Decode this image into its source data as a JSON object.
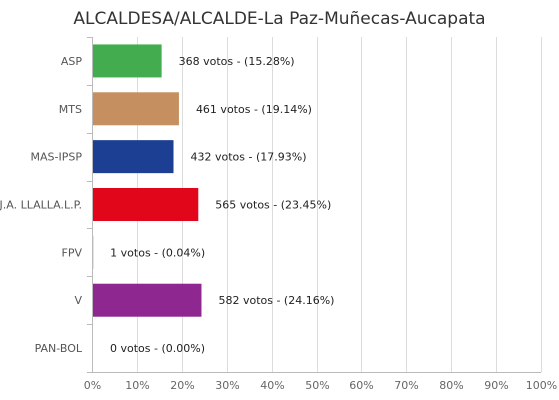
{
  "chart_data": {
    "type": "bar",
    "orientation": "horizontal",
    "title": "ALCALDESA/ALCALDE-La Paz-Muñecas-Aucapata",
    "categories": [
      "ASP",
      "MTS",
      "MAS-IPSP",
      "J.A. LLALLA.L.P.",
      "FPV",
      "V",
      "PAN-BOL"
    ],
    "values": [
      15.28,
      19.14,
      17.93,
      23.45,
      0.04,
      24.16,
      0.0
    ],
    "votes": [
      368,
      461,
      432,
      565,
      1,
      582,
      0
    ],
    "data_labels": [
      "368 votos - (15.28%)",
      "461 votos - (19.14%)",
      "432 votos - (17.93%)",
      "565 votos - (23.45%)",
      "1 votos - (0.04%)",
      "582 votos - (24.16%)",
      "0 votos - (0.00%)"
    ],
    "colors": [
      "#43ac4f",
      "#c68f60",
      "#1c3f93",
      "#e2061a",
      "#5a5a5a",
      "#8e2890",
      "#888888"
    ],
    "xlim": [
      0,
      100
    ],
    "xticks": [
      "0%",
      "10%",
      "20%",
      "30%",
      "40%",
      "50%",
      "60%",
      "70%",
      "80%",
      "90%",
      "100%"
    ],
    "xlabel": "",
    "ylabel": "",
    "grid": true,
    "legend": "none"
  }
}
